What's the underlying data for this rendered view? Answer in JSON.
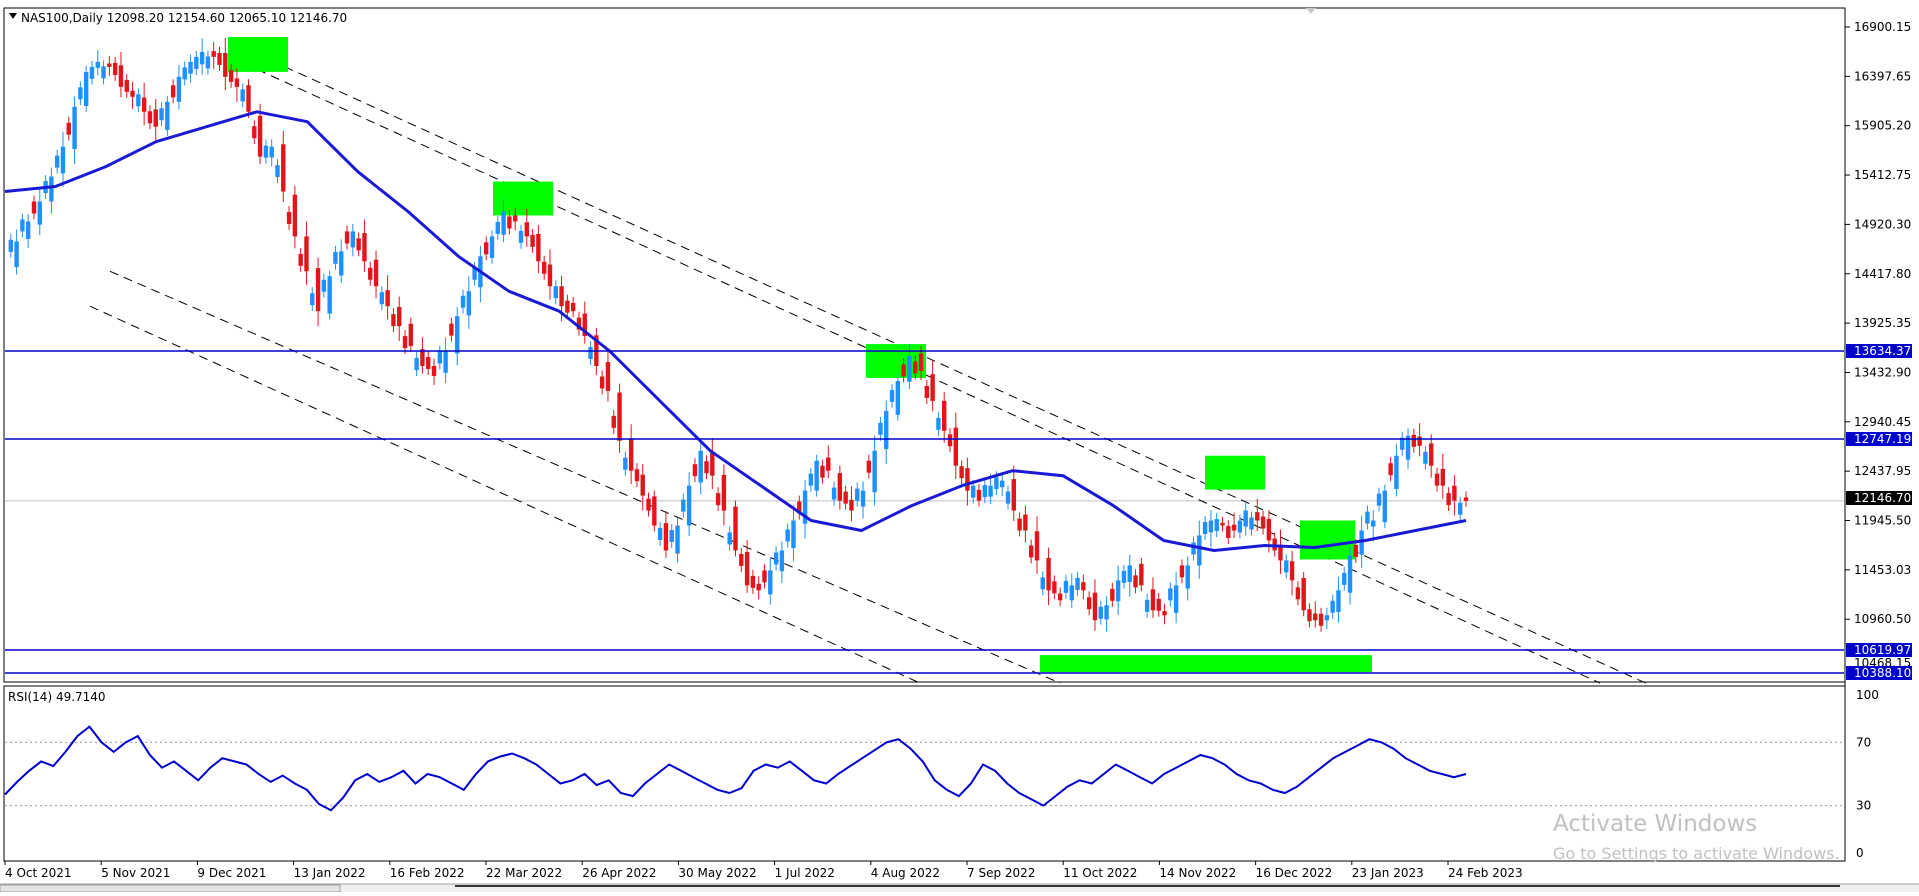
{
  "main_chart": {
    "symbol_line": "NAS100,Daily  12098.20 12154.60 12065.10 12146.70",
    "price_ticks": [
      "16900.15",
      "16397.65",
      "15905.20",
      "15412.75",
      "14920.30",
      "14417.80",
      "13925.35",
      "13432.90",
      "12940.45",
      "12437.95",
      "11945.50",
      "11453.03",
      "10960.50"
    ],
    "price_tick_values": [
      16900.15,
      16397.65,
      15905.2,
      15412.75,
      14920.3,
      14417.8,
      13925.35,
      13432.9,
      12940.45,
      12437.95,
      11945.5,
      11453.03,
      10960.5
    ],
    "level_labels": [
      "13634.37",
      "12747.19",
      "12146.70",
      "10619.97",
      "10468.15",
      "10388.10"
    ],
    "colors": {
      "level_line": "#0000cc",
      "ma": "#1a1ad6",
      "highlight": "#00ff00",
      "bull": "#1e90ff",
      "bear": "#e0161b",
      "label_bg": "#0000cc",
      "current_bg": "#000000"
    }
  },
  "rsi_panel": {
    "label": "RSI(14) 49.7140",
    "ticks": [
      "100",
      "70",
      "30",
      "0"
    ],
    "tick_values": [
      100,
      70,
      30,
      0
    ],
    "color": "#0000cc"
  },
  "x_axis": {
    "labels": [
      "4 Oct 2021",
      "5 Nov 2021",
      "9 Dec 2021",
      "13 Jan 2022",
      "16 Feb 2022",
      "22 Mar 2022",
      "26 Apr 2022",
      "30 May 2022",
      "1 Jul 2022",
      "4 Aug 2022",
      "7 Sep 2022",
      "11 Oct 2022",
      "14 Nov 2022",
      "16 Dec 2022",
      "23 Jan 2023",
      "24 Feb 2023"
    ]
  },
  "watermark": {
    "line1": "Activate Windows",
    "line2": "Go to Settings to activate Windows."
  },
  "chart_data": {
    "type": "candlestick",
    "symbol": "NAS100",
    "timeframe": "Daily",
    "ohlc_current": {
      "open": 12098.2,
      "high": 12154.6,
      "low": 12065.1,
      "close": 12146.7
    },
    "x_labels": [
      "4 Oct 2021",
      "5 Nov 2021",
      "9 Dec 2021",
      "13 Jan 2022",
      "16 Feb 2022",
      "22 Mar 2022",
      "26 Apr 2022",
      "30 May 2022",
      "1 Jul 2022",
      "4 Aug 2022",
      "7 Sep 2022",
      "11 Oct 2022",
      "14 Nov 2022",
      "16 Dec 2022",
      "23 Jan 2023",
      "24 Feb 2023"
    ],
    "close_path": [
      14500,
      14750,
      14950,
      15150,
      15400,
      15700,
      16100,
      16450,
      16550,
      16500,
      16300,
      16200,
      16050,
      15900,
      16150,
      16400,
      16550,
      16650,
      16600,
      16400,
      16300,
      16050,
      15600,
      15700,
      15250,
      14800,
      14450,
      14050,
      14400,
      14650,
      14850,
      14550,
      14300,
      14100,
      13900,
      13700,
      13500,
      13400,
      13650,
      14000,
      14250,
      14600,
      14800,
      15050,
      14950,
      14800,
      14550,
      14300,
      14100,
      14050,
      13800,
      13500,
      13250,
      12750,
      12450,
      12200,
      11900,
      11650,
      11900,
      12300,
      12650,
      12400,
      12050,
      11650,
      11300,
      11250,
      11450,
      11650,
      11950,
      12250,
      12550,
      12450,
      12150,
      12050,
      12250,
      12650,
      13050,
      13350,
      13600,
      13450,
      13150,
      12850,
      12500,
      12250,
      12150,
      12300,
      12350,
      12050,
      11850,
      11550,
      11250,
      11150,
      11300,
      11250,
      10950,
      11100,
      11350,
      11500,
      11300,
      11050,
      11000,
      11300,
      11500,
      11800,
      11950,
      11900,
      11850,
      12050,
      11950,
      11750,
      11550,
      11350,
      11050,
      10950,
      11000,
      11250,
      11600,
      11850,
      11950,
      12250,
      12600,
      12800,
      12700,
      12500,
      12300,
      12150,
      12147
    ],
    "ma_path": [
      15250,
      15300,
      15500,
      15750,
      15900,
      16050,
      15950,
      15450,
      15050,
      14600,
      14250,
      14050,
      13650,
      13150,
      12650,
      12300,
      11950,
      11850,
      12100,
      12300,
      12450,
      12400,
      12100,
      11750,
      11650,
      11700,
      11680,
      11750,
      11850,
      11950
    ],
    "horizontal_levels": [
      13634.37,
      12747.19,
      10619.97,
      10388.1
    ],
    "current_price": 12146.7,
    "rsi": {
      "period": 14,
      "current": 49.714,
      "levels": [
        70,
        30
      ],
      "ylim": [
        0,
        100
      ],
      "values": [
        37,
        45,
        52,
        58,
        55,
        64,
        74,
        80,
        70,
        64,
        70,
        74,
        62,
        54,
        58,
        52,
        46,
        54,
        60,
        58,
        56,
        50,
        45,
        49,
        44,
        40,
        31,
        27,
        35,
        46,
        50,
        45,
        48,
        52,
        44,
        50,
        48,
        44,
        40,
        50,
        58,
        61,
        63,
        60,
        56,
        50,
        44,
        46,
        50,
        43,
        46,
        38,
        36,
        44,
        50,
        56,
        52,
        48,
        44,
        40,
        38,
        41,
        52,
        56,
        54,
        58,
        52,
        46,
        44,
        50,
        55,
        60,
        65,
        70,
        72,
        66,
        58,
        46,
        40,
        36,
        44,
        56,
        52,
        44,
        38,
        34,
        30,
        36,
        42,
        46,
        44,
        50,
        56,
        52,
        48,
        44,
        50,
        54,
        58,
        62,
        60,
        56,
        50,
        46,
        44,
        40,
        38,
        42,
        48,
        54,
        60,
        64,
        68,
        72,
        70,
        66,
        60,
        56,
        52,
        50,
        48,
        50
      ]
    },
    "price_ylim": [
      10300,
      17100
    ]
  }
}
